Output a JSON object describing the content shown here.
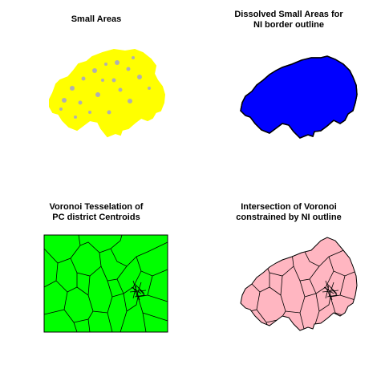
{
  "panels": [
    {
      "title": "Small Areas",
      "fill": "#ffff00",
      "stroke": "#ffff00",
      "inner": "#b0b0b0"
    },
    {
      "title_lines": [
        "Dissolved Small Areas for",
        "NI border outline"
      ],
      "fill": "#0000ff",
      "stroke": "#000000"
    },
    {
      "title_lines": [
        "Voronoi Tesselation of",
        "PC district Centroids"
      ],
      "fill": "#00ff00",
      "stroke": "#000000"
    },
    {
      "title_lines": [
        "Intersection of Voronoi",
        "constrained by NI outline"
      ],
      "fill": "#ffb6c1",
      "stroke": "#000000"
    }
  ]
}
